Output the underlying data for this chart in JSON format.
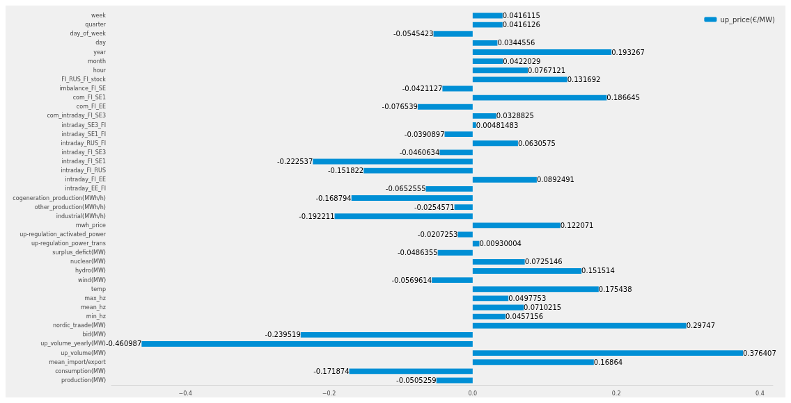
{
  "chart_data": {
    "type": "bar",
    "orientation": "horizontal",
    "categories": [
      "week",
      "quarter",
      "day_of_week",
      "day",
      "year",
      "month",
      "hour",
      "FI_RUS_FI_stock",
      "imbalance_FI_SE",
      "com_FI_SE1",
      "com_FI_EE",
      "com_intraday_FI_SE3",
      "intraday_SE3_FI",
      "intraday_SE1_FI",
      "intraday_RUS_FI",
      "intraday_FI_SE3",
      "intraday_FI_SE1",
      "intraday_FI_RUS",
      "intraday_FI_EE",
      "intraday_EE_FI",
      "cogeneration_production(MWh/h)",
      "other_production(MWh/h)",
      "industrial(MWh/h)",
      "mwh_price",
      "up-regulation_activated_power",
      "up-regulation_power_trans",
      "surplus_defict(MW)",
      "nuclear(MW)",
      "hydro(MW)",
      "wind(MW)",
      "temp",
      "max_hz",
      "mean_hz",
      "min_hz",
      "nordic_traade(MW)",
      "bid(MW)",
      "up_volume_yearly(MW)",
      "up_volume(MW)",
      "mean_import/export",
      "consumption(MW)",
      "production(MW)"
    ],
    "series": [
      {
        "name": "up_price(€/MW)",
        "color": "#008fd5",
        "values": [
          0.0416115,
          0.0416126,
          -0.0545423,
          0.0344556,
          0.193267,
          0.0422029,
          0.0767121,
          0.131692,
          -0.0421127,
          0.186645,
          -0.076539,
          0.0328825,
          0.00481483,
          -0.0390897,
          0.0630575,
          -0.0460634,
          -0.222537,
          -0.151822,
          0.0892491,
          -0.0652555,
          -0.168794,
          -0.0254571,
          -0.192211,
          0.122071,
          -0.0207253,
          0.00930004,
          -0.0486355,
          0.0725146,
          0.151514,
          -0.0569614,
          0.175438,
          0.0497753,
          0.0710215,
          0.0457156,
          0.29747,
          -0.239519,
          -0.460987,
          0.376407,
          0.16864,
          -0.171874,
          -0.0505259
        ]
      }
    ],
    "xlim": [
      -0.503,
      0.418
    ],
    "xticks": [
      {
        "value": -0.4,
        "label": "−0.4"
      },
      {
        "value": -0.2,
        "label": "−0.2"
      },
      {
        "value": 0,
        "label": "0.0"
      },
      {
        "value": 0.2,
        "label": "0.2"
      },
      {
        "value": 0.4,
        "label": "0.4"
      }
    ],
    "data_labels": true,
    "legend": "top right",
    "grid": false
  }
}
